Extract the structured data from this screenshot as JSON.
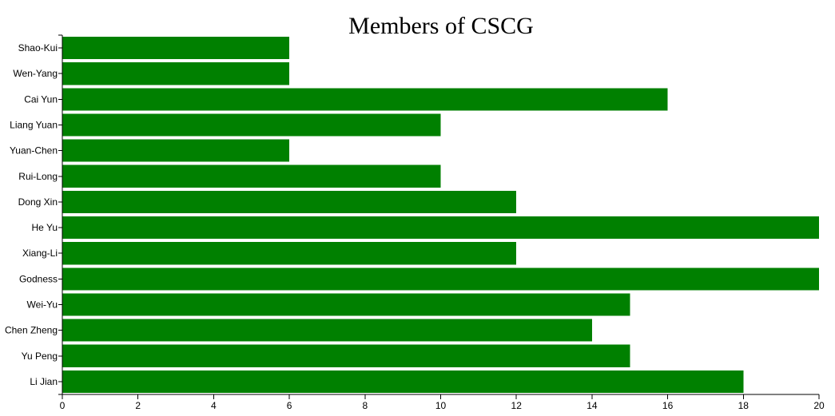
{
  "chart_data": {
    "type": "bar",
    "orientation": "horizontal",
    "title": "Members of CSCG",
    "xlabel": "",
    "ylabel": "",
    "categories": [
      "Shao-Kui",
      "Wen-Yang",
      "Cai Yun",
      "Liang Yuan",
      "Yuan-Chen",
      "Rui-Long",
      "Dong Xin",
      "He Yu",
      "Xiang-Li",
      "Godness",
      "Wei-Yu",
      "Chen Zheng",
      "Yu Peng",
      "Li Jian"
    ],
    "values": [
      6,
      6,
      16,
      10,
      6,
      10,
      12,
      20,
      12,
      20,
      15,
      14,
      15,
      18
    ],
    "xlim": [
      0,
      20
    ],
    "x_ticks": [
      0,
      2,
      4,
      6,
      8,
      10,
      12,
      14,
      16,
      18,
      20
    ],
    "bar_color": "#008000",
    "grid": false,
    "legend": "none"
  }
}
